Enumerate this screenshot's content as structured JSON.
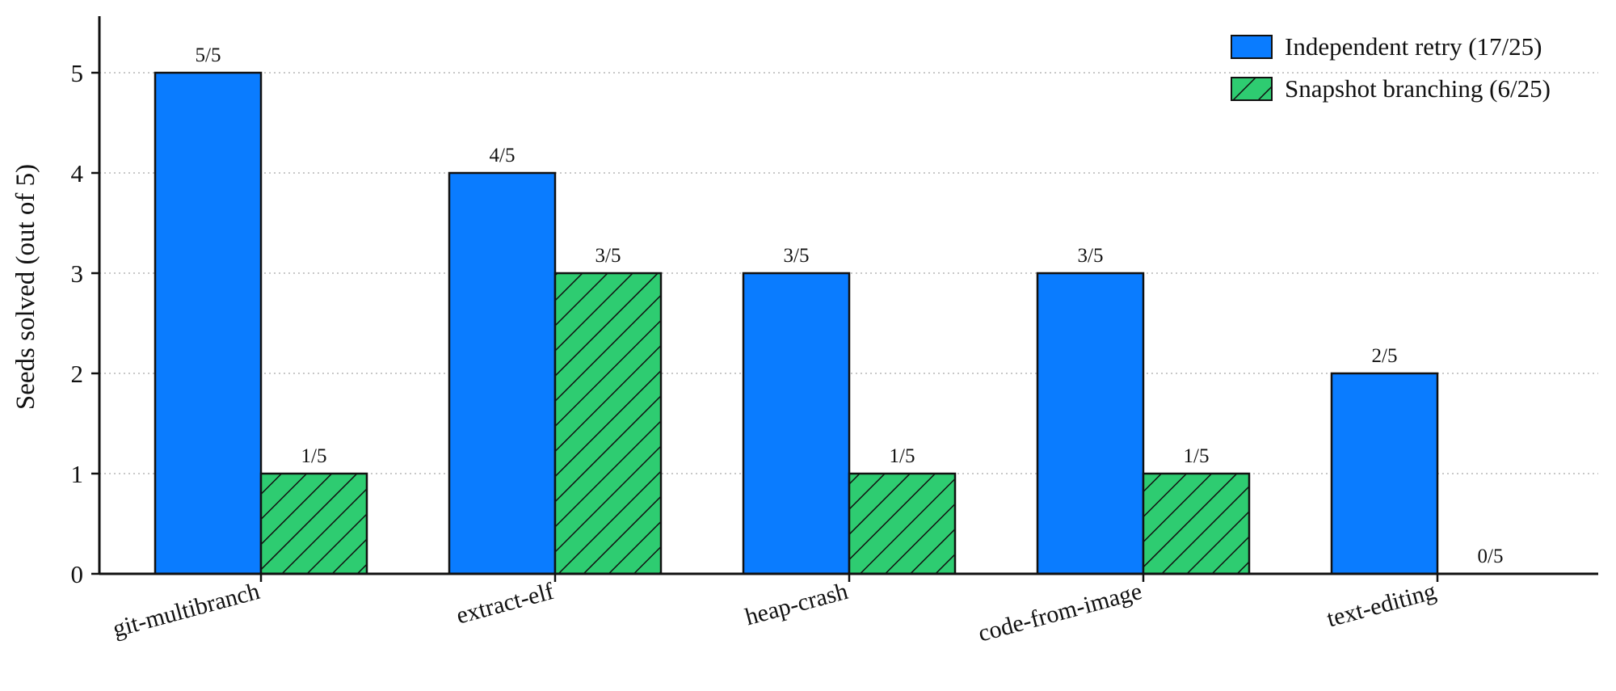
{
  "chart_data": {
    "type": "bar",
    "ylabel": "Seeds solved (out of 5)",
    "xlabel": "",
    "ylim": [
      0,
      5.55
    ],
    "yticks": [
      0,
      1,
      2,
      3,
      4,
      5
    ],
    "grid": "horizontal dotted",
    "legend_position": "top-right",
    "categories": [
      "git-multibranch",
      "extract-elf",
      "heap-crash",
      "code-from-image",
      "text-editing"
    ],
    "series": [
      {
        "name": "Independent retry (17/25)",
        "color": "#0a7cff",
        "pattern": "solid",
        "values": [
          5,
          4,
          3,
          3,
          2
        ],
        "labels": [
          "5/5",
          "4/5",
          "3/5",
          "3/5",
          "2/5"
        ]
      },
      {
        "name": "Snapshot branching (6/25)",
        "color": "#2ecc71",
        "pattern": "diagonal-hatch",
        "values": [
          1,
          3,
          1,
          1,
          0
        ],
        "labels": [
          "1/5",
          "3/5",
          "1/5",
          "1/5",
          "0/5"
        ]
      }
    ]
  }
}
